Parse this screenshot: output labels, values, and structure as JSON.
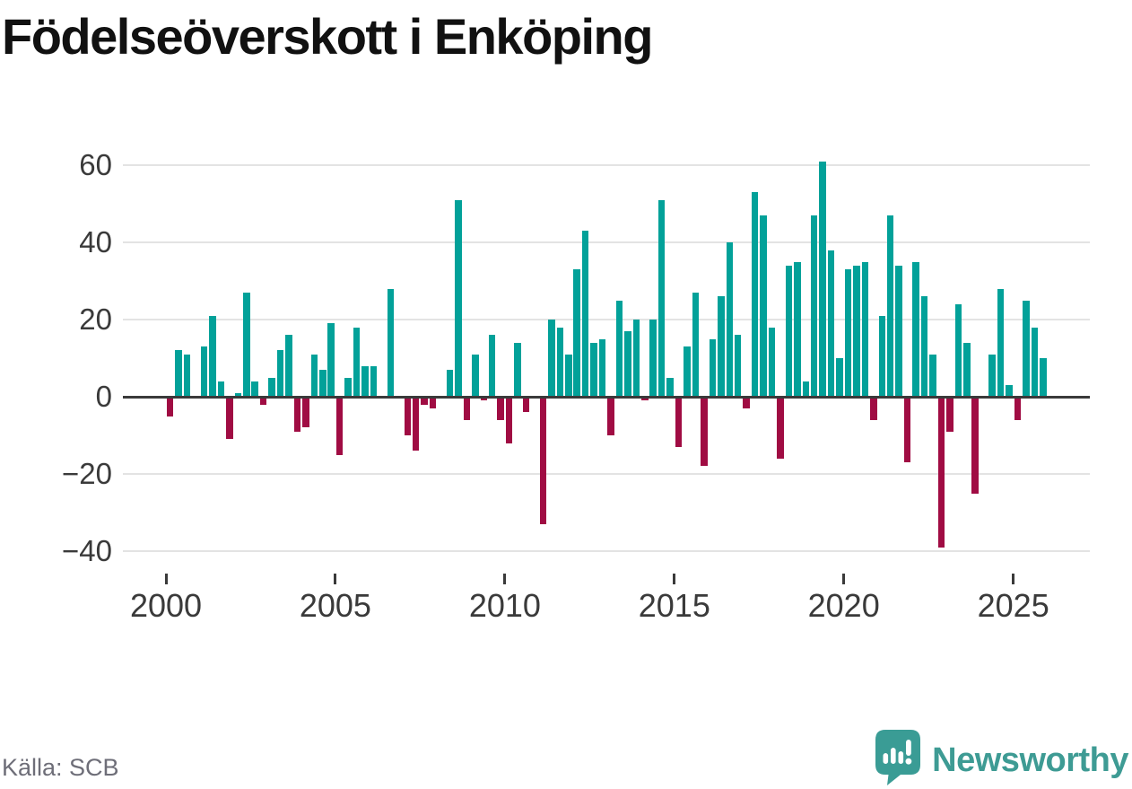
{
  "title": "Födelseöverskott i Enköping",
  "source": "Källa: SCB",
  "brand": {
    "name": "Newsworthy",
    "color": "#3e9b94"
  },
  "colors": {
    "positive_bar": "#02a199",
    "negative_bar": "#a00c43",
    "axis_line": "#3a3a3a",
    "gridline": "#e3e3e3",
    "tick_label": "#3a3a3a",
    "source_text": "#6e6e78",
    "title_text": "#111111"
  },
  "y_axis": {
    "ticks": [
      {
        "label": "60",
        "value": 60
      },
      {
        "label": "40",
        "value": 40
      },
      {
        "label": "20",
        "value": 20
      },
      {
        "label": "0",
        "value": 0
      },
      {
        "label": "−20",
        "value": -20
      },
      {
        "label": "−40",
        "value": -40
      }
    ]
  },
  "x_axis": {
    "ticks": [
      {
        "label": "2000",
        "year": 2000
      },
      {
        "label": "2005",
        "year": 2005
      },
      {
        "label": "2010",
        "year": 2010
      },
      {
        "label": "2015",
        "year": 2015
      },
      {
        "label": "2020",
        "year": 2020
      },
      {
        "label": "2025",
        "year": 2025
      }
    ]
  },
  "chart_data": {
    "type": "bar",
    "title": "Födelseöverskott i Enköping",
    "x_unit": "quarter",
    "x_range": [
      "2000 Q1",
      "2025 Q4"
    ],
    "ylim": [
      -40,
      60
    ],
    "grid": "horizontal",
    "legend": "none",
    "positive_color": "#02a199",
    "negative_color": "#a00c43",
    "values_by_year": [
      {
        "year": 2000,
        "quarters": [
          -5,
          12,
          11,
          0
        ]
      },
      {
        "year": 2001,
        "quarters": [
          13,
          21,
          4,
          -11
        ]
      },
      {
        "year": 2002,
        "quarters": [
          1,
          27,
          4,
          -2
        ]
      },
      {
        "year": 2003,
        "quarters": [
          5,
          12,
          16,
          -9
        ]
      },
      {
        "year": 2004,
        "quarters": [
          -8,
          11,
          7,
          19
        ]
      },
      {
        "year": 2005,
        "quarters": [
          -15,
          5,
          18,
          8
        ]
      },
      {
        "year": 2006,
        "quarters": [
          8,
          0,
          28,
          0
        ]
      },
      {
        "year": 2007,
        "quarters": [
          -10,
          -14,
          -2,
          -3
        ]
      },
      {
        "year": 2008,
        "quarters": [
          0,
          7,
          51,
          -6
        ]
      },
      {
        "year": 2009,
        "quarters": [
          11,
          -1,
          16,
          -6
        ]
      },
      {
        "year": 2010,
        "quarters": [
          -12,
          14,
          -4,
          0
        ]
      },
      {
        "year": 2011,
        "quarters": [
          -33,
          20,
          18,
          11
        ]
      },
      {
        "year": 2012,
        "quarters": [
          33,
          43,
          14,
          15
        ]
      },
      {
        "year": 2013,
        "quarters": [
          -10,
          25,
          17,
          20
        ]
      },
      {
        "year": 2014,
        "quarters": [
          -1,
          20,
          51,
          5
        ]
      },
      {
        "year": 2015,
        "quarters": [
          -13,
          13,
          27,
          -18
        ]
      },
      {
        "year": 2016,
        "quarters": [
          15,
          26,
          40,
          16
        ]
      },
      {
        "year": 2017,
        "quarters": [
          -3,
          53,
          47,
          18
        ]
      },
      {
        "year": 2018,
        "quarters": [
          -16,
          34,
          35,
          4
        ]
      },
      {
        "year": 2019,
        "quarters": [
          47,
          61,
          38,
          10
        ]
      },
      {
        "year": 2020,
        "quarters": [
          33,
          34,
          35,
          -6
        ]
      },
      {
        "year": 2021,
        "quarters": [
          21,
          47,
          34,
          -17
        ]
      },
      {
        "year": 2022,
        "quarters": [
          35,
          26,
          11,
          -39
        ]
      },
      {
        "year": 2023,
        "quarters": [
          -9,
          24,
          14,
          -25
        ]
      },
      {
        "year": 2024,
        "quarters": [
          0,
          11,
          28,
          3
        ]
      },
      {
        "year": 2025,
        "quarters": [
          -6,
          25,
          18,
          10
        ]
      }
    ]
  }
}
